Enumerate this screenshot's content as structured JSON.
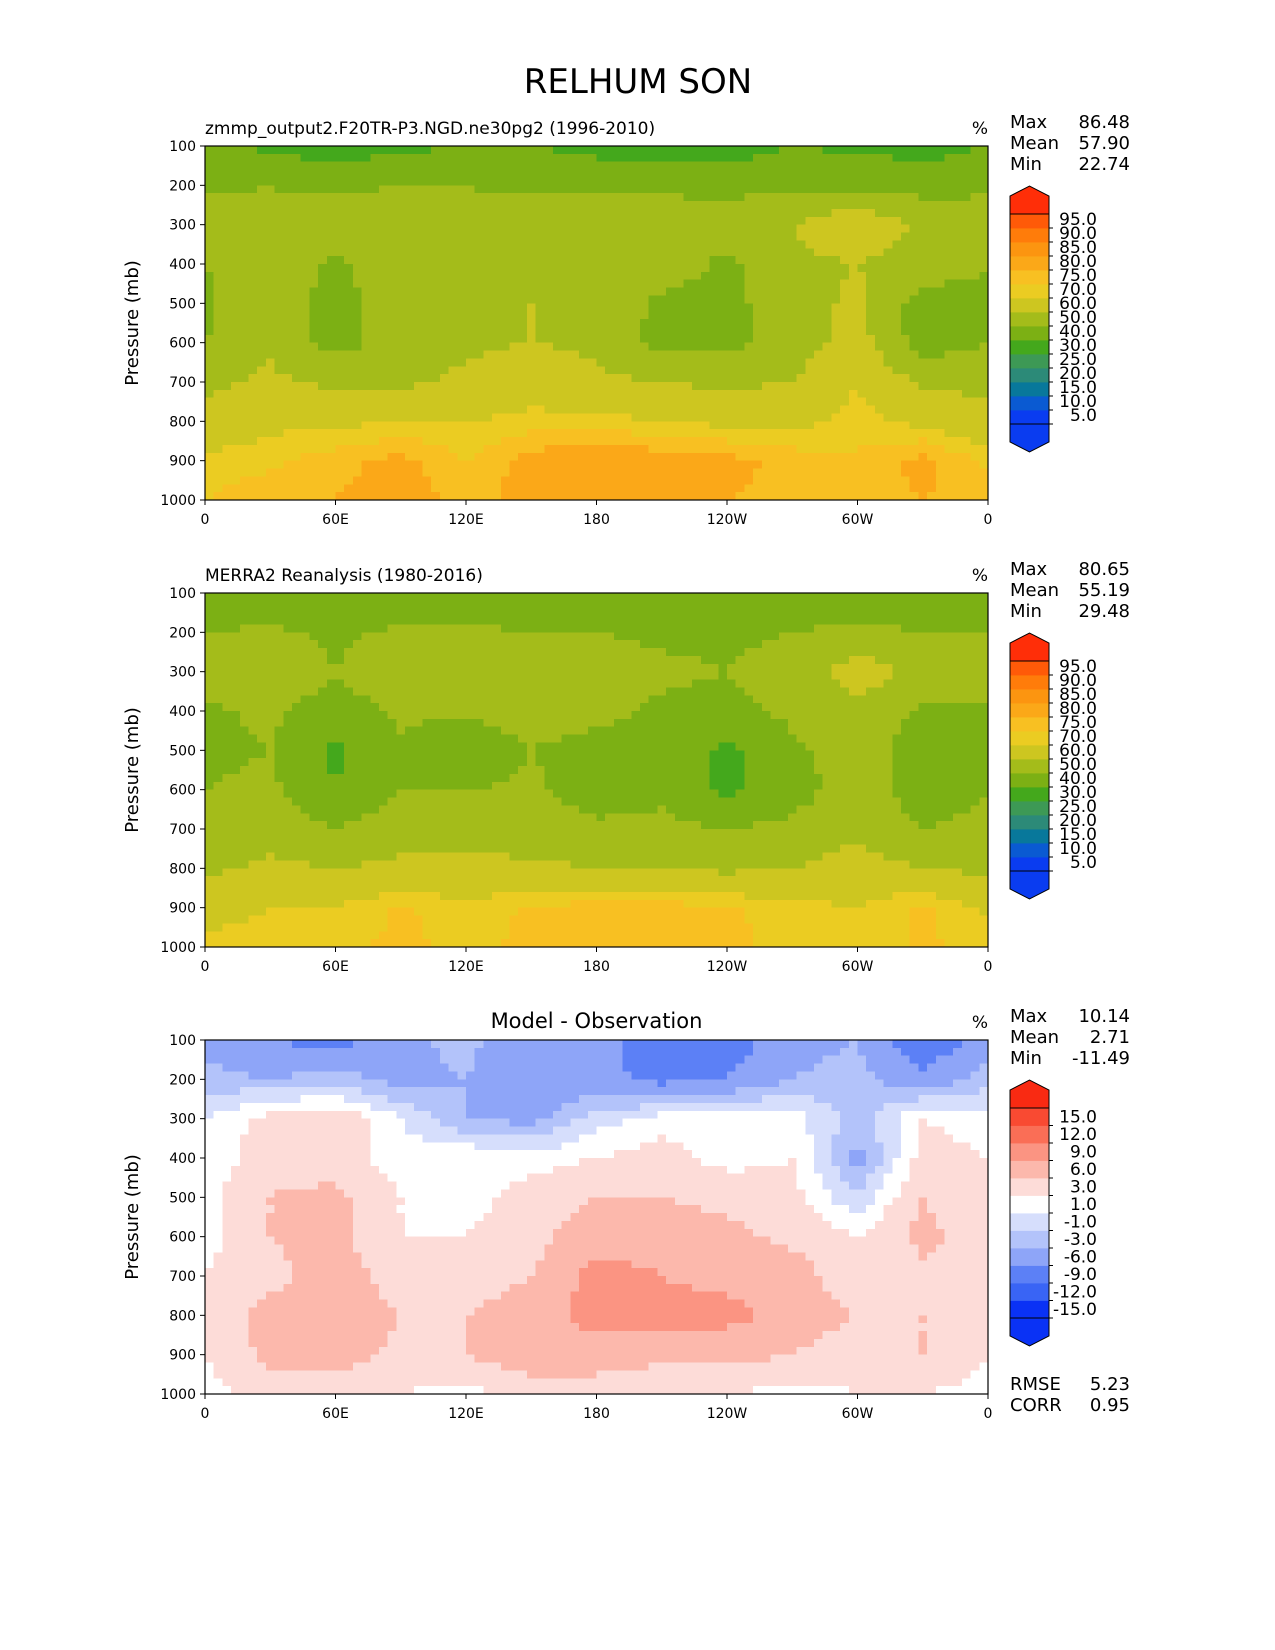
{
  "figure": {
    "title": "RELHUM SON"
  },
  "colors": {
    "abs_levels": [
      {
        "label": "",
        "color": "#0a3cf0"
      },
      {
        "label": "5.0",
        "color": "#0a3cf0"
      },
      {
        "label": "10.0",
        "color": "#0a5ad2"
      },
      {
        "label": "15.0",
        "color": "#08789b"
      },
      {
        "label": "20.0",
        "color": "#2c8a78"
      },
      {
        "label": "25.0",
        "color": "#3d9955"
      },
      {
        "label": "30.0",
        "color": "#44a81c"
      },
      {
        "label": "40.0",
        "color": "#7cb014"
      },
      {
        "label": "50.0",
        "color": "#a4bc1a"
      },
      {
        "label": "60.0",
        "color": "#cdc620"
      },
      {
        "label": "70.0",
        "color": "#ebcc22"
      },
      {
        "label": "75.0",
        "color": "#f8c022"
      },
      {
        "label": "80.0",
        "color": "#fba818"
      },
      {
        "label": "85.0",
        "color": "#fc9510"
      },
      {
        "label": "90.0",
        "color": "#ff7c0a"
      },
      {
        "label": "95.0",
        "color": "#ff5a08"
      },
      {
        "label": "",
        "color": "#ff2e08"
      }
    ],
    "diff_levels": [
      {
        "label": "",
        "color": "#0a32f5"
      },
      {
        "label": "-15.0",
        "color": "#0a32f5"
      },
      {
        "label": "-12.0",
        "color": "#3964f5"
      },
      {
        "label": "-9.0",
        "color": "#5c80f6"
      },
      {
        "label": "-6.0",
        "color": "#8ea5f8"
      },
      {
        "label": "-3.0",
        "color": "#b3c3fa"
      },
      {
        "label": "-1.0",
        "color": "#d6defc"
      },
      {
        "label": "1.0",
        "color": "#ffffff"
      },
      {
        "label": "3.0",
        "color": "#fddcd8"
      },
      {
        "label": "6.0",
        "color": "#fcb8ac"
      },
      {
        "label": "9.0",
        "color": "#fb9482"
      },
      {
        "label": "12.0",
        "color": "#fa6e56"
      },
      {
        "label": "15.0",
        "color": "#f94a32"
      },
      {
        "label": "",
        "color": "#f92a12"
      }
    ]
  },
  "chart_data": [
    {
      "type": "heatmap",
      "title": "zmmp_output2.F20TR-P3.NGD.ne30pg2 (1996-2010)",
      "units": "%",
      "xlabel": "",
      "ylabel": "Pressure (mb)",
      "xticks": [
        "0",
        "60E",
        "120E",
        "180",
        "120W",
        "60W",
        "0"
      ],
      "yticks": [
        "100",
        "200",
        "300",
        "400",
        "500",
        "600",
        "700",
        "800",
        "900",
        "1000"
      ],
      "ylim": [
        100,
        1000
      ],
      "stats": [
        {
          "label": "Max",
          "value": "86.48"
        },
        {
          "label": "Mean",
          "value": "57.90"
        },
        {
          "label": "Min",
          "value": "22.74"
        }
      ],
      "colorbar": "abs",
      "grid": {
        "x": [
          0,
          30,
          60,
          90,
          120,
          150,
          180,
          210,
          240,
          270,
          300,
          330,
          360
        ],
        "p": [
          100,
          200,
          300,
          400,
          500,
          600,
          700,
          800,
          900,
          1000
        ],
        "values": [
          [
            42,
            38,
            34,
            38,
            40,
            40,
            37,
            36,
            35,
            40,
            38,
            36,
            40
          ],
          [
            48,
            50,
            47,
            50,
            50,
            48,
            47,
            48,
            47,
            48,
            48,
            46,
            48
          ],
          [
            55,
            52,
            60,
            60,
            52,
            58,
            58,
            56,
            55,
            60,
            68,
            58,
            55
          ],
          [
            50,
            58,
            48,
            58,
            58,
            58,
            60,
            55,
            48,
            58,
            60,
            56,
            50
          ],
          [
            48,
            58,
            45,
            56,
            58,
            60,
            58,
            48,
            47,
            56,
            62,
            45,
            48
          ],
          [
            50,
            58,
            46,
            55,
            58,
            60,
            58,
            46,
            47,
            55,
            64,
            45,
            50
          ],
          [
            58,
            62,
            58,
            58,
            62,
            66,
            62,
            60,
            58,
            60,
            70,
            58,
            58
          ],
          [
            62,
            68,
            68,
            70,
            70,
            72,
            72,
            70,
            68,
            68,
            72,
            68,
            62
          ],
          [
            72,
            74,
            78,
            82,
            75,
            83,
            85,
            84,
            82,
            78,
            76,
            82,
            74
          ],
          [
            75,
            78,
            80,
            83,
            78,
            82,
            84,
            83,
            80,
            79,
            78,
            80,
            78
          ]
        ]
      }
    },
    {
      "type": "heatmap",
      "title": "MERRA2 Reanalysis (1980-2016)",
      "units": "%",
      "xlabel": "",
      "ylabel": "Pressure (mb)",
      "xticks": [
        "0",
        "60E",
        "120E",
        "180",
        "120W",
        "60W",
        "0"
      ],
      "yticks": [
        "100",
        "200",
        "300",
        "400",
        "500",
        "600",
        "700",
        "800",
        "900",
        "1000"
      ],
      "ylim": [
        100,
        1000
      ],
      "stats": [
        {
          "label": "Max",
          "value": "80.65"
        },
        {
          "label": "Mean",
          "value": "55.19"
        },
        {
          "label": "Min",
          "value": "29.48"
        }
      ],
      "colorbar": "abs",
      "grid": {
        "x": [
          0,
          30,
          60,
          90,
          120,
          150,
          180,
          210,
          240,
          270,
          300,
          330,
          360
        ],
        "p": [
          100,
          200,
          300,
          400,
          500,
          600,
          700,
          800,
          900,
          1000
        ],
        "values": [
          [
            40,
            42,
            40,
            42,
            42,
            40,
            40,
            42,
            42,
            42,
            44,
            42,
            40
          ],
          [
            50,
            52,
            48,
            52,
            52,
            50,
            50,
            48,
            48,
            50,
            52,
            50,
            50
          ],
          [
            55,
            58,
            50,
            58,
            56,
            58,
            57,
            52,
            50,
            55,
            65,
            58,
            55
          ],
          [
            48,
            52,
            45,
            52,
            52,
            56,
            54,
            48,
            47,
            52,
            58,
            48,
            48
          ],
          [
            48,
            50,
            38,
            48,
            40,
            50,
            45,
            45,
            38,
            48,
            55,
            45,
            48
          ],
          [
            50,
            52,
            40,
            50,
            50,
            52,
            45,
            48,
            38,
            46,
            55,
            45,
            50
          ],
          [
            52,
            56,
            50,
            56,
            56,
            55,
            52,
            52,
            50,
            52,
            58,
            50,
            52
          ],
          [
            58,
            62,
            60,
            62,
            62,
            62,
            60,
            60,
            58,
            60,
            64,
            60,
            58
          ],
          [
            66,
            70,
            70,
            76,
            72,
            76,
            77,
            77,
            76,
            72,
            70,
            76,
            68
          ],
          [
            72,
            74,
            74,
            76,
            74,
            76,
            77,
            77,
            76,
            74,
            72,
            76,
            74
          ]
        ]
      }
    },
    {
      "type": "heatmap",
      "title": "Model - Observation",
      "units": "%",
      "xlabel": "",
      "ylabel": "Pressure (mb)",
      "xticks": [
        "0",
        "60E",
        "120E",
        "180",
        "120W",
        "60W",
        "0"
      ],
      "yticks": [
        "100",
        "200",
        "300",
        "400",
        "500",
        "600",
        "700",
        "800",
        "900",
        "1000"
      ],
      "ylim": [
        100,
        1000
      ],
      "stats": [
        {
          "label": "Max",
          "value": "10.14"
        },
        {
          "label": "Mean",
          "value": "2.71"
        },
        {
          "label": "Min",
          "value": "-11.49"
        }
      ],
      "extra_stats": [
        {
          "label": "RMSE",
          "value": "5.23"
        },
        {
          "label": "CORR",
          "value": "0.95"
        }
      ],
      "colorbar": "diff",
      "grid": {
        "x": [
          0,
          30,
          60,
          90,
          120,
          150,
          180,
          210,
          240,
          270,
          300,
          330,
          360
        ],
        "p": [
          100,
          200,
          300,
          400,
          500,
          600,
          700,
          800,
          900,
          1000
        ],
        "values": [
          [
            -4,
            -6,
            -7,
            -4,
            -2,
            -6,
            -4,
            -9,
            -8,
            -4,
            -3,
            -9,
            -4
          ],
          [
            -2,
            -3,
            -2,
            -4,
            -3,
            -6,
            -5,
            -7,
            -6,
            -3,
            -2,
            -5,
            -2
          ],
          [
            1,
            4,
            5,
            1,
            -3,
            -4,
            0,
            2,
            3,
            2,
            -2,
            3,
            2
          ],
          [
            1,
            5,
            4,
            2,
            3,
            2,
            3,
            4,
            2,
            3,
            -4,
            4,
            3
          ],
          [
            2,
            6,
            7,
            3,
            2,
            4,
            6,
            6,
            5,
            4,
            -1,
            6,
            3
          ],
          [
            2,
            6,
            7,
            3,
            3,
            5,
            8,
            8,
            7,
            5,
            3,
            7,
            4
          ],
          [
            3,
            5,
            8,
            4,
            4,
            6,
            10,
            9,
            8,
            8,
            3,
            5,
            4
          ],
          [
            4,
            7,
            9,
            6,
            6,
            8,
            10,
            10,
            10,
            8,
            6,
            6,
            4
          ],
          [
            3,
            7,
            8,
            5,
            6,
            8,
            8,
            7,
            7,
            6,
            4,
            6,
            3
          ],
          [
            2,
            4,
            3,
            3,
            2,
            4,
            4,
            3,
            3,
            2,
            3,
            3,
            2
          ]
        ]
      }
    }
  ]
}
